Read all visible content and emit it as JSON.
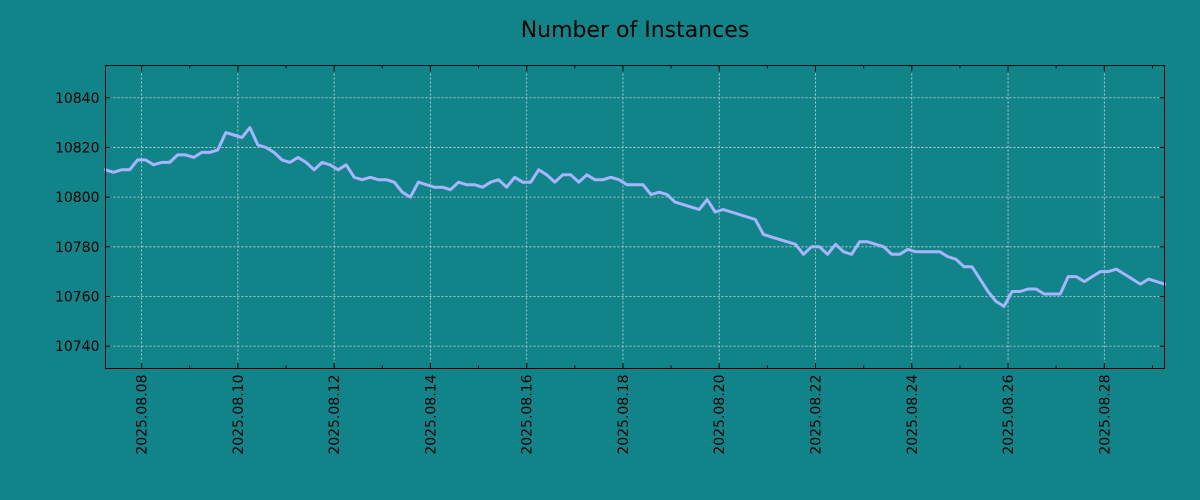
{
  "chart_data": {
    "type": "line",
    "title": "Number of Instances",
    "xlabel": "",
    "ylabel": "",
    "x_range": [
      "2025-08-07T06:00",
      "2025-08-29T06:00"
    ],
    "ylim": [
      10731,
      10853
    ],
    "y_ticks": [
      10740,
      10760,
      10780,
      10800,
      10820,
      10840
    ],
    "x_ticks": [
      "2025.08.08",
      "2025.08.10",
      "2025.08.12",
      "2025.08.14",
      "2025.08.16",
      "2025.08.18",
      "2025.08.20",
      "2025.08.22",
      "2025.08.24",
      "2025.08.26",
      "2025.08.28"
    ],
    "grid": true,
    "colors": {
      "background": "#108488",
      "line": "#a9b4ff"
    },
    "series": [
      {
        "x": [
          "2025-08-07T06:00",
          "2025-08-07T10:00",
          "2025-08-07T14:00",
          "2025-08-07T18:00",
          "2025-08-07T22:00",
          "2025-08-08T02:00",
          "2025-08-08T06:00",
          "2025-08-08T10:00",
          "2025-08-08T14:00",
          "2025-08-08T18:00",
          "2025-08-08T22:00",
          "2025-08-09T02:00",
          "2025-08-09T06:00",
          "2025-08-09T10:00",
          "2025-08-09T14:00",
          "2025-08-09T18:00",
          "2025-08-09T22:00",
          "2025-08-10T02:00",
          "2025-08-10T06:00",
          "2025-08-10T10:00",
          "2025-08-10T14:00",
          "2025-08-10T18:00",
          "2025-08-10T22:00",
          "2025-08-11T02:00",
          "2025-08-11T06:00",
          "2025-08-11T10:00",
          "2025-08-11T14:00",
          "2025-08-11T18:00",
          "2025-08-11T22:00",
          "2025-08-12T02:00",
          "2025-08-12T06:00",
          "2025-08-12T10:00",
          "2025-08-12T14:00",
          "2025-08-12T18:00",
          "2025-08-12T22:00",
          "2025-08-13T02:00",
          "2025-08-13T06:00",
          "2025-08-13T10:00",
          "2025-08-13T14:00",
          "2025-08-13T18:00",
          "2025-08-13T22:00",
          "2025-08-14T02:00",
          "2025-08-14T06:00",
          "2025-08-14T10:00",
          "2025-08-14T14:00",
          "2025-08-14T18:00",
          "2025-08-14T22:00",
          "2025-08-15T02:00",
          "2025-08-15T06:00",
          "2025-08-15T10:00",
          "2025-08-15T14:00",
          "2025-08-15T18:00",
          "2025-08-15T22:00",
          "2025-08-16T02:00",
          "2025-08-16T06:00",
          "2025-08-16T10:00",
          "2025-08-16T14:00",
          "2025-08-16T18:00",
          "2025-08-16T22:00",
          "2025-08-17T02:00",
          "2025-08-17T06:00",
          "2025-08-17T10:00",
          "2025-08-17T14:00",
          "2025-08-17T18:00",
          "2025-08-17T22:00",
          "2025-08-18T02:00",
          "2025-08-18T06:00",
          "2025-08-18T10:00",
          "2025-08-18T14:00",
          "2025-08-18T18:00",
          "2025-08-18T22:00",
          "2025-08-19T02:00",
          "2025-08-19T06:00",
          "2025-08-19T10:00",
          "2025-08-19T14:00",
          "2025-08-19T18:00",
          "2025-08-19T22:00",
          "2025-08-20T02:00",
          "2025-08-20T06:00",
          "2025-08-20T10:00",
          "2025-08-20T14:00",
          "2025-08-20T18:00",
          "2025-08-20T22:00",
          "2025-08-21T02:00",
          "2025-08-21T06:00",
          "2025-08-21T10:00",
          "2025-08-21T14:00",
          "2025-08-21T18:00",
          "2025-08-21T22:00",
          "2025-08-22T02:00",
          "2025-08-22T06:00",
          "2025-08-22T10:00",
          "2025-08-22T14:00",
          "2025-08-22T18:00",
          "2025-08-22T22:00",
          "2025-08-23T02:00",
          "2025-08-23T06:00",
          "2025-08-23T10:00",
          "2025-08-23T14:00",
          "2025-08-23T18:00",
          "2025-08-23T22:00",
          "2025-08-24T02:00",
          "2025-08-24T06:00",
          "2025-08-24T10:00",
          "2025-08-24T14:00",
          "2025-08-24T18:00",
          "2025-08-24T22:00",
          "2025-08-25T02:00",
          "2025-08-25T06:00",
          "2025-08-25T10:00",
          "2025-08-25T14:00",
          "2025-08-25T18:00",
          "2025-08-25T22:00",
          "2025-08-26T02:00",
          "2025-08-26T06:00",
          "2025-08-26T10:00",
          "2025-08-26T14:00",
          "2025-08-26T18:00",
          "2025-08-26T22:00",
          "2025-08-27T02:00",
          "2025-08-27T06:00",
          "2025-08-27T10:00",
          "2025-08-27T14:00",
          "2025-08-27T18:00",
          "2025-08-27T22:00",
          "2025-08-28T02:00",
          "2025-08-28T06:00",
          "2025-08-28T10:00",
          "2025-08-28T14:00",
          "2025-08-28T18:00",
          "2025-08-28T22:00",
          "2025-08-29T02:00",
          "2025-08-29T06:00"
        ],
        "values": [
          10811,
          10810,
          10811,
          10811,
          10815,
          10815,
          10813,
          10814,
          10814,
          10817,
          10817,
          10816,
          10818,
          10818,
          10819,
          10826,
          10825,
          10824,
          10828,
          10821,
          10820,
          10818,
          10815,
          10814,
          10816,
          10814,
          10811,
          10814,
          10813,
          10811,
          10813,
          10808,
          10807,
          10808,
          10807,
          10807,
          10806,
          10802,
          10800,
          10806,
          10805,
          10804,
          10804,
          10803,
          10806,
          10805,
          10805,
          10804,
          10806,
          10807,
          10804,
          10808,
          10806,
          10806,
          10811,
          10809,
          10806,
          10809,
          10809,
          10806,
          10809,
          10807,
          10807,
          10808,
          10807,
          10805,
          10805,
          10805,
          10801,
          10802,
          10801,
          10798,
          10797,
          10796,
          10795,
          10799,
          10794,
          10795,
          10794,
          10793,
          10792,
          10791,
          10785,
          10784,
          10783,
          10782,
          10781,
          10777,
          10780,
          10780,
          10777,
          10781,
          10778,
          10777,
          10782,
          10782,
          10781,
          10780,
          10777,
          10777,
          10779,
          10778,
          10778,
          10778,
          10778,
          10776,
          10775,
          10772,
          10772,
          10767,
          10762,
          10758,
          10756,
          10762,
          10762,
          10763,
          10763,
          10761,
          10761,
          10761,
          10768,
          10768,
          10766,
          10768,
          10770,
          10770,
          10771,
          10769,
          10767,
          10765,
          10767,
          10766,
          10765
        ]
      }
    ]
  }
}
